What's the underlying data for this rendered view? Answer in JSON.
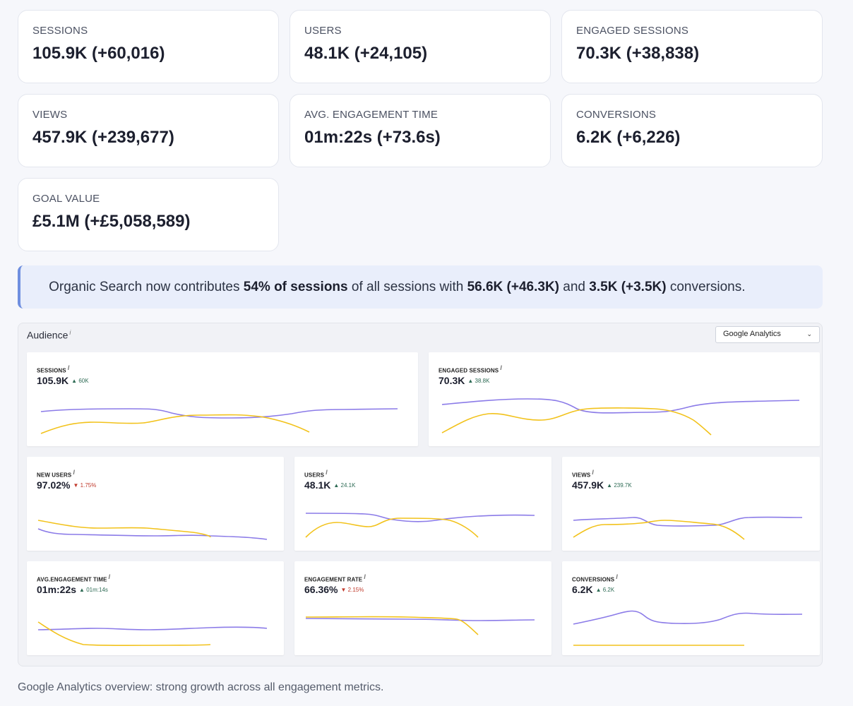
{
  "kpis": [
    {
      "label": "SESSIONS",
      "value": "105.9K (+60,016)"
    },
    {
      "label": "USERS",
      "value": "48.1K (+24,105)"
    },
    {
      "label": "ENGAGED SESSIONS",
      "value": "70.3K (+38,838)"
    },
    {
      "label": "VIEWS",
      "value": "457.9K (+239,677)"
    },
    {
      "label": "AVG. ENGAGEMENT TIME",
      "value": "01m:22s (+73.6s)"
    },
    {
      "label": "CONVERSIONS",
      "value": "6.2K (+6,226)"
    },
    {
      "label": "GOAL VALUE",
      "value": "£5.1M (+£5,058,589)"
    }
  ],
  "callout": {
    "prefix": "Organic Search now contributes ",
    "share": "54% of sessions",
    "middle": " of all sessions with ",
    "sessions": "56.6K (+46.3K)",
    "and": " and ",
    "conversions": "3.5K (+3.5K)",
    "suffix": " conversions."
  },
  "audience": {
    "title": "Audience",
    "info": "i",
    "source_select": "Google Analytics",
    "cards": [
      {
        "label": "SESSIONS",
        "value": "105.9K",
        "delta": "60K",
        "direction": "up"
      },
      {
        "label": "ENGAGED SESSIONS",
        "value": "70.3K",
        "delta": "38.8K",
        "direction": "up"
      },
      {
        "label": "NEW USERS",
        "value": "97.02%",
        "delta": "1.75%",
        "direction": "down"
      },
      {
        "label": "USERS",
        "value": "48.1K",
        "delta": "24.1K",
        "direction": "up"
      },
      {
        "label": "VIEWS",
        "value": "457.9K",
        "delta": "239.7K",
        "direction": "up"
      },
      {
        "label": "AVG.ENGAGEMENT TIME",
        "value": "01m:22s",
        "delta": "01m:14s",
        "direction": "up"
      },
      {
        "label": "ENGAGEMENT RATE",
        "value": "66.36%",
        "delta": "2.15%",
        "direction": "down"
      },
      {
        "label": "CONVERSIONS",
        "value": "6.2K",
        "delta": "6.2K",
        "direction": "up"
      }
    ]
  },
  "colors": {
    "current": "#8b7be8",
    "previous": "#f2c21b",
    "up": "#2e6b55",
    "down": "#c0392b",
    "accent": "#6f8fdf"
  },
  "icons": {
    "delta_up": "▲",
    "delta_down": "▼",
    "select": "chevron-down-icon"
  },
  "footer": "Google Analytics overview: strong growth across all engagement metrics."
}
